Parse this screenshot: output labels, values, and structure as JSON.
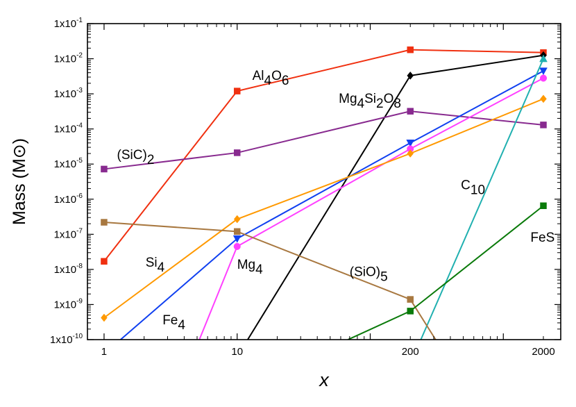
{
  "chart_data": {
    "type": "line",
    "xscale": "log",
    "yscale": "log",
    "xlabel": "x",
    "ylabel": "Mass (M⊙)",
    "xlim": [
      0.75,
      2700
    ],
    "ylim": [
      1e-10,
      0.1
    ],
    "grid": false,
    "legend": "none",
    "x_ticks": [
      {
        "value": 1,
        "label": "1"
      },
      {
        "value": 10,
        "label": "10"
      },
      {
        "value": 200,
        "label": "200"
      },
      {
        "value": 2000,
        "label": "2000"
      }
    ],
    "y_ticks": [
      {
        "value": 1e-10,
        "base": "1x10",
        "exp": "-10"
      },
      {
        "value": 1e-09,
        "base": "1x10",
        "exp": "-9"
      },
      {
        "value": 1e-08,
        "base": "1x10",
        "exp": "-8"
      },
      {
        "value": 1e-07,
        "base": "1x10",
        "exp": "-7"
      },
      {
        "value": 1e-06,
        "base": "1x10",
        "exp": "-6"
      },
      {
        "value": 1e-05,
        "base": "1x10",
        "exp": "-5"
      },
      {
        "value": 0.0001,
        "base": "1x10",
        "exp": "-4"
      },
      {
        "value": 0.001,
        "base": "1x10",
        "exp": "-3"
      },
      {
        "value": 0.01,
        "base": "1x10",
        "exp": "-2"
      },
      {
        "value": 0.1,
        "base": "1x10",
        "exp": "-1"
      }
    ],
    "series": [
      {
        "name": "Al4O6",
        "label": [
          {
            "t": "Al"
          },
          {
            "t": "4",
            "sub": true
          },
          {
            "t": "O"
          },
          {
            "t": "6",
            "sub": true
          }
        ],
        "label_at": [
          0.0025,
          13
        ],
        "color": "#f03010",
        "marker": "square",
        "x": [
          1,
          10,
          200,
          2000
        ],
        "y": [
          1.7e-08,
          0.0012,
          0.018,
          0.015
        ]
      },
      {
        "name": "Mg4Si2O8",
        "label": [
          {
            "t": "Mg"
          },
          {
            "t": "4",
            "sub": true
          },
          {
            "t": "Si"
          },
          {
            "t": "2",
            "sub": true
          },
          {
            "t": "O"
          },
          {
            "t": "8",
            "sub": true
          }
        ],
        "label_at": [
          0.00055,
          58
        ],
        "color": "#000000",
        "marker": "diamond",
        "x": [
          12,
          200,
          2000
        ],
        "y": [
          1e-10,
          0.0033,
          0.0125
        ]
      },
      {
        "name": "(SiC)2",
        "label": [
          {
            "t": "(SiC)"
          },
          {
            "t": "2",
            "sub": true
          }
        ],
        "label_at": [
          1.4e-05,
          1.25
        ],
        "color": "#882a8f",
        "marker": "square",
        "x": [
          1,
          10,
          200,
          2000
        ],
        "y": [
          7.2e-06,
          2.1e-05,
          0.00032,
          0.00013
        ]
      },
      {
        "name": "Fe4",
        "label": [
          {
            "t": "Fe"
          },
          {
            "t": "4",
            "sub": true
          }
        ],
        "label_at": [
          2.7e-10,
          2.75
        ],
        "color": "#1040f0",
        "marker": "triangle-down",
        "x": [
          1.33,
          10,
          200,
          2000
        ],
        "y": [
          1e-10,
          7.5e-08,
          4e-05,
          0.0045
        ]
      },
      {
        "name": "Mg4",
        "label": [
          {
            "t": "Mg"
          },
          {
            "t": "4",
            "sub": true
          }
        ],
        "label_at": [
          1.05e-08,
          10
        ],
        "color": "#ff40ff",
        "marker": "circle",
        "x": [
          5.2,
          10,
          200,
          2000
        ],
        "y": [
          1e-10,
          4.5e-08,
          2.7e-05,
          0.0028
        ]
      },
      {
        "name": "Si4",
        "label": [
          {
            "t": "Si"
          },
          {
            "t": "4",
            "sub": true
          }
        ],
        "label_at": [
          1.2e-08,
          2.05
        ],
        "color": "#ff9900",
        "marker": "diamond",
        "x": [
          1,
          10,
          200,
          2000
        ],
        "y": [
          4.2e-10,
          2.7e-07,
          2e-05,
          0.00072
        ]
      },
      {
        "name": "C10",
        "label": [
          {
            "t": "C"
          },
          {
            "t": "10",
            "sub": true
          }
        ],
        "label_at": [
          1.9e-06,
          480
        ],
        "color": "#20b0b0",
        "marker": "triangle-up",
        "x": [
          240,
          2000
        ],
        "y": [
          1e-10,
          0.01
        ]
      },
      {
        "name": "(SiO)5",
        "label": [
          {
            "t": "(SiO)"
          },
          {
            "t": "5",
            "sub": true
          }
        ],
        "label_at": [
          6.5e-09,
          70
        ],
        "color": "#a87840",
        "marker": "square",
        "x": [
          1,
          10,
          200,
          310
        ],
        "y": [
          2.2e-07,
          1.2e-07,
          1.4e-09,
          1e-10
        ]
      },
      {
        "name": "FeS",
        "label": [
          {
            "t": "FeS"
          }
        ],
        "label_at": [
          6.2e-08,
          1600
        ],
        "color": "#0a7a0a",
        "marker": "square",
        "x": [
          68,
          200,
          2000
        ],
        "y": [
          1e-10,
          6.5e-10,
          6.5e-07
        ]
      }
    ]
  }
}
